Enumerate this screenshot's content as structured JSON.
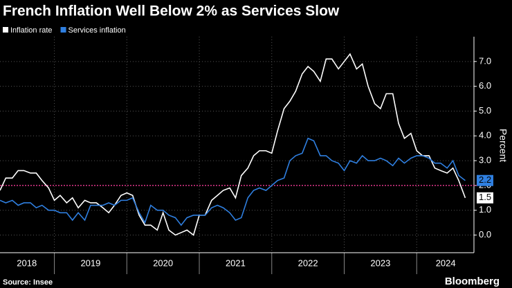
{
  "chart_data": {
    "type": "line",
    "title": "French Inflation Well Below 2% as Services Slow",
    "y_label": "Percent",
    "source": "Source: Insee",
    "brand": "Bloomberg",
    "x": [
      2018.25,
      2018.33,
      2018.42,
      2018.5,
      2018.58,
      2018.67,
      2018.75,
      2018.83,
      2018.92,
      2019,
      2019.08,
      2019.17,
      2019.25,
      2019.33,
      2019.42,
      2019.5,
      2019.58,
      2019.67,
      2019.75,
      2019.83,
      2019.92,
      2020,
      2020.08,
      2020.17,
      2020.25,
      2020.33,
      2020.42,
      2020.5,
      2020.58,
      2020.67,
      2020.75,
      2020.83,
      2020.92,
      2021,
      2021.08,
      2021.17,
      2021.25,
      2021.33,
      2021.42,
      2021.5,
      2021.58,
      2021.67,
      2021.75,
      2021.83,
      2021.92,
      2022,
      2022.08,
      2022.17,
      2022.25,
      2022.33,
      2022.42,
      2022.5,
      2022.58,
      2022.67,
      2022.75,
      2022.83,
      2022.92,
      2023,
      2023.08,
      2023.17,
      2023.25,
      2023.33,
      2023.42,
      2023.5,
      2023.58,
      2023.67,
      2023.75,
      2023.83,
      2023.92,
      2024,
      2024.08,
      2024.17,
      2024.25,
      2024.33,
      2024.42,
      2024.5,
      2024.58,
      2024.67
    ],
    "series": [
      {
        "name": "Inflation rate",
        "color": "#ffffff",
        "values": [
          1.8,
          2.3,
          2.3,
          2.6,
          2.6,
          2.5,
          2.5,
          2.2,
          1.9,
          1.4,
          1.6,
          1.3,
          1.5,
          1.1,
          1.4,
          1.3,
          1.3,
          1.1,
          0.9,
          1.2,
          1.6,
          1.7,
          1.6,
          0.8,
          0.4,
          0.4,
          0.2,
          0.9,
          0.2,
          0.0,
          0.1,
          0.2,
          0.0,
          0.8,
          0.8,
          1.4,
          1.6,
          1.8,
          1.9,
          1.5,
          2.4,
          2.7,
          3.2,
          3.4,
          3.4,
          3.3,
          4.2,
          5.1,
          5.4,
          5.8,
          6.5,
          6.8,
          6.6,
          6.2,
          7.1,
          7.1,
          6.7,
          7.0,
          7.3,
          6.7,
          6.9,
          6.0,
          5.3,
          5.1,
          5.7,
          5.7,
          4.5,
          3.9,
          4.1,
          3.4,
          3.2,
          3.2,
          2.7,
          2.6,
          2.5,
          2.7,
          2.2,
          1.5
        ]
      },
      {
        "name": "Services inflation",
        "color": "#2f7fe0",
        "values": [
          1.4,
          1.3,
          1.4,
          1.2,
          1.3,
          1.3,
          1.1,
          1.2,
          1.0,
          1.0,
          0.9,
          0.9,
          0.6,
          0.9,
          0.6,
          1.2,
          1.2,
          1.2,
          1.3,
          1.2,
          1.4,
          1.4,
          1.5,
          0.9,
          0.5,
          1.2,
          1.0,
          1.0,
          0.8,
          0.7,
          0.4,
          0.7,
          0.8,
          0.8,
          0.8,
          1.1,
          1.2,
          1.1,
          0.9,
          0.6,
          0.7,
          1.5,
          1.8,
          1.9,
          1.8,
          2.0,
          2.2,
          2.3,
          3.0,
          3.2,
          3.3,
          3.9,
          3.8,
          3.2,
          3.2,
          3.0,
          2.9,
          2.6,
          3.0,
          2.9,
          3.2,
          3.0,
          3.0,
          3.1,
          3.0,
          2.8,
          3.1,
          2.9,
          3.1,
          3.2,
          3.2,
          3.1,
          2.9,
          2.9,
          2.7,
          3.0,
          2.4,
          2.2
        ]
      }
    ],
    "xlim": [
      2018.25,
      2024.79
    ],
    "x_gridlines": [
      2019,
      2020,
      2021,
      2022,
      2023,
      2024
    ],
    "xticks": [
      {
        "value": 2018.62,
        "label": "2018"
      },
      {
        "value": 2019.5,
        "label": "2019"
      },
      {
        "value": 2020.5,
        "label": "2020"
      },
      {
        "value": 2021.5,
        "label": "2021"
      },
      {
        "value": 2022.5,
        "label": "2022"
      },
      {
        "value": 2023.5,
        "label": "2023"
      },
      {
        "value": 2024.4,
        "label": "2024"
      }
    ],
    "ylim": [
      -0.6,
      8.0
    ],
    "yticks": [
      {
        "value": 0,
        "label": "0.0"
      },
      {
        "value": 1,
        "label": "1.0"
      },
      {
        "value": 2,
        "label": "2.0"
      },
      {
        "value": 3,
        "label": "3.0"
      },
      {
        "value": 4,
        "label": "4.0"
      },
      {
        "value": 5,
        "label": "5.0"
      },
      {
        "value": 6,
        "label": "6.0"
      },
      {
        "value": 7,
        "label": "7.0"
      }
    ],
    "reference_line": 2,
    "reference_color": "#e0368b",
    "grid": true
  }
}
